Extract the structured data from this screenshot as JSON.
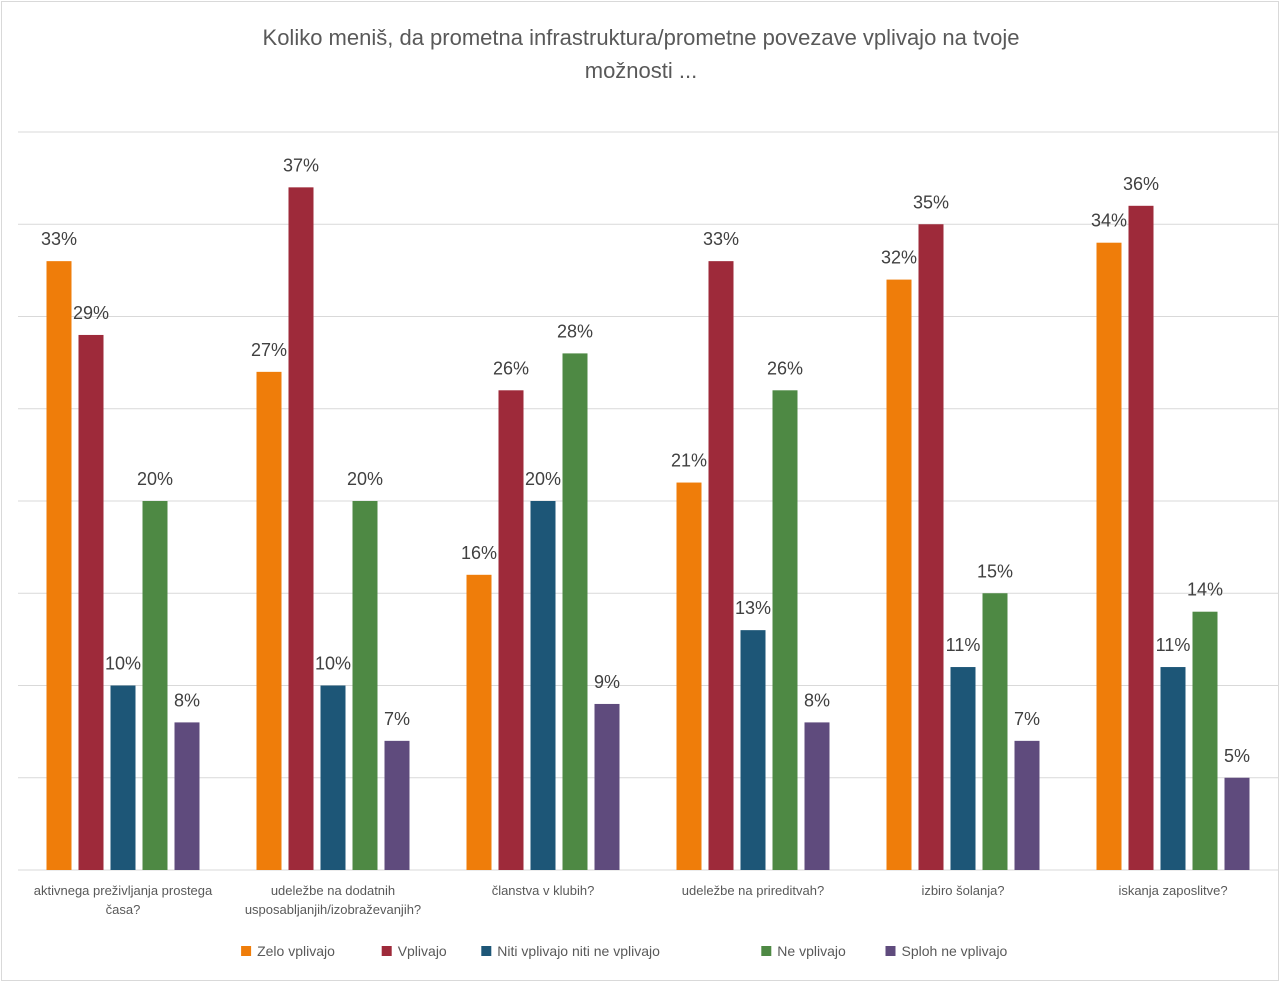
{
  "chart_data": {
    "type": "bar",
    "title_lines": [
      "Koliko meniš, da prometna infrastruktura/prometne povezave vplivajo na tvoje",
      "možnosti ..."
    ],
    "categories": [
      [
        "aktivnega preživljanja prostega",
        "časa?"
      ],
      [
        "udeležbe na dodatnih",
        "usposabljanjih/izobraževanjih?"
      ],
      [
        "članstva v klubih?"
      ],
      [
        "udeležbe na prireditvah?"
      ],
      [
        "izbiro šolanja?"
      ],
      [
        "iskanja zaposlitve?"
      ]
    ],
    "series": [
      {
        "name": "Zelo vplivajo",
        "color": "#ef7d0a",
        "values": [
          33,
          27,
          16,
          21,
          32,
          34
        ]
      },
      {
        "name": "Vplivajo",
        "color": "#9e2a3a",
        "values": [
          29,
          37,
          26,
          33,
          35,
          36
        ]
      },
      {
        "name": "Niti vplivajo niti ne vplivajo",
        "color": "#1d5677",
        "values": [
          10,
          10,
          20,
          13,
          11,
          11
        ]
      },
      {
        "name": "Ne vplivajo",
        "color": "#4e8944",
        "values": [
          20,
          20,
          28,
          26,
          15,
          14
        ]
      },
      {
        "name": "Sploh ne vplivajo",
        "color": "#5f4b7d",
        "values": [
          8,
          7,
          9,
          8,
          7,
          5
        ]
      }
    ],
    "value_suffix": "%",
    "ylim": [
      0,
      40
    ],
    "grid": true,
    "legend_position": "bottom",
    "axis_tick_labels_shown": false
  }
}
